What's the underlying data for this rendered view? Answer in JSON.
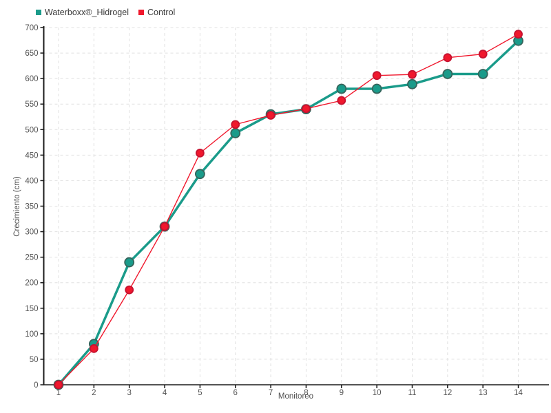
{
  "axes": {
    "x_title": "Monitoreo",
    "y_title": "Crecimiento (cm)"
  },
  "colors": {
    "background": "#ffffff",
    "grid": "#e0e0e0",
    "axis": "#1a1a1a",
    "tick_label": "#525252"
  },
  "chart_data": {
    "type": "line",
    "title": "",
    "xlabel": "Monitoreo",
    "ylabel": "Crecimiento (cm)",
    "x": [
      1,
      2,
      3,
      4,
      5,
      6,
      7,
      8,
      9,
      10,
      11,
      12,
      13,
      14
    ],
    "series": [
      {
        "name": "Waterboxx®_Hidrogel",
        "color": "#1a9b8a",
        "marker_stroke": "#35645b",
        "line_width": 3.5,
        "marker_radius": 6.5,
        "values": [
          0,
          80,
          240,
          310,
          413,
          493,
          530,
          540,
          580,
          580,
          589,
          609,
          609,
          674
        ]
      },
      {
        "name": "Control",
        "color": "#f0182d",
        "marker_stroke": "#c51230",
        "line_width": 1.4,
        "marker_radius": 5.5,
        "values": [
          0,
          71,
          186,
          310,
          454,
          510,
          528,
          541,
          557,
          606,
          608,
          641,
          648,
          687
        ]
      }
    ],
    "ylim": [
      0,
      700
    ],
    "y_tick_step": 50,
    "grid": true,
    "grid_style": "dashed",
    "legend_position": "top-left"
  }
}
